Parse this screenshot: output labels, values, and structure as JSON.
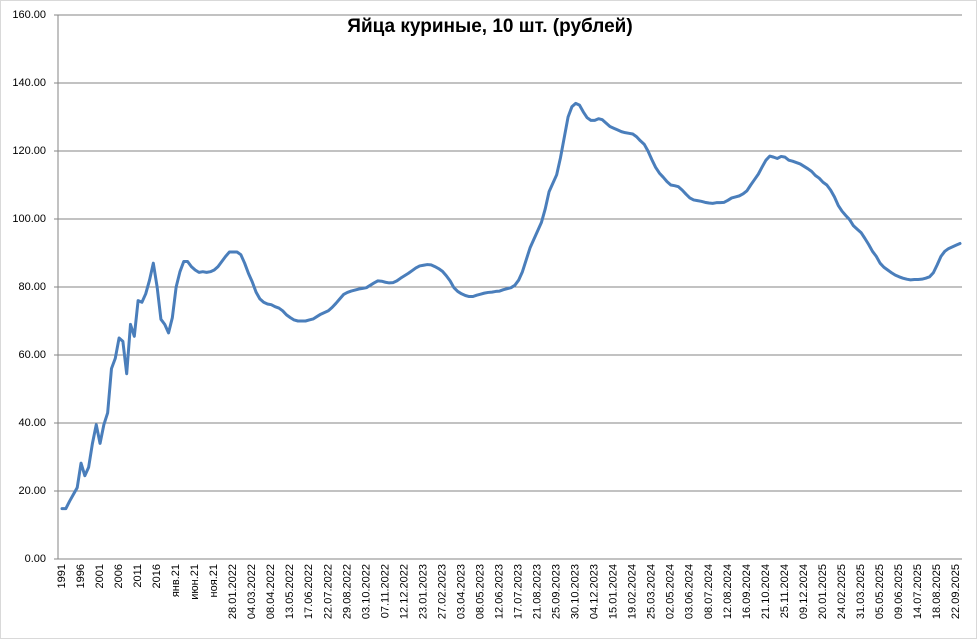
{
  "chart_data": {
    "type": "line",
    "title": "Яйца куриные, 10 шт. (рублей)",
    "categories": [
      "1991",
      null,
      null,
      null,
      null,
      "1996",
      null,
      null,
      null,
      null,
      "2001",
      null,
      null,
      null,
      null,
      "2006",
      null,
      null,
      null,
      null,
      "2011",
      null,
      null,
      null,
      null,
      "2016",
      null,
      null,
      null,
      null,
      "янв.21",
      null,
      null,
      null,
      null,
      "июн.21",
      null,
      null,
      null,
      null,
      "ноя.21",
      null,
      null,
      null,
      null,
      "28.01.2022",
      null,
      null,
      null,
      null,
      "04.03.2022",
      null,
      null,
      null,
      null,
      "08.04.2022",
      null,
      null,
      null,
      null,
      "13.05.2022",
      null,
      null,
      null,
      null,
      "17.06.2022",
      null,
      null,
      null,
      null,
      "22.07.2022",
      null,
      null,
      null,
      null,
      "29.08.2022",
      null,
      null,
      null,
      null,
      "03.10.2022",
      null,
      null,
      null,
      null,
      "07.11.2022",
      null,
      null,
      null,
      null,
      "12.12.2022",
      null,
      null,
      null,
      null,
      "23.01.2023",
      null,
      null,
      null,
      null,
      "27.02.2023",
      null,
      null,
      null,
      null,
      "03.04.2023",
      null,
      null,
      null,
      null,
      "08.05.2023",
      null,
      null,
      null,
      null,
      "12.06.2023",
      null,
      null,
      null,
      null,
      "17.07.2023",
      null,
      null,
      null,
      null,
      "21.08.2023",
      null,
      null,
      null,
      null,
      "25.09.2023",
      null,
      null,
      null,
      null,
      "30.10.2023",
      null,
      null,
      null,
      null,
      "04.12.2023",
      null,
      null,
      null,
      null,
      "15.01.2024",
      null,
      null,
      null,
      null,
      "19.02.2024",
      null,
      null,
      null,
      null,
      "25.03.2024",
      null,
      null,
      null,
      null,
      "02.05.2024",
      null,
      null,
      null,
      null,
      "03.06.2024",
      null,
      null,
      null,
      null,
      "08.07.2024",
      null,
      null,
      null,
      null,
      "12.08.2024",
      null,
      null,
      null,
      null,
      "16.09.2024",
      null,
      null,
      null,
      null,
      "21.10.2024",
      null,
      null,
      null,
      null,
      "25.11.2024",
      null,
      null,
      null,
      null,
      "09.12.2024",
      null,
      null,
      null,
      null,
      "20.01.2025",
      null,
      null,
      null,
      null,
      "24.02.2025",
      null,
      null,
      null,
      null,
      "31.03.2025",
      null,
      null,
      null,
      null,
      "05.05.2025",
      null,
      null,
      null,
      null,
      "09.06.2025",
      null,
      null,
      null,
      null,
      "14.07.2025",
      null,
      null,
      null,
      null,
      "18.08.2025",
      null,
      null,
      null,
      null,
      "22.09.2025",
      null
    ],
    "values": [
      14.8,
      14.8,
      17,
      19,
      21,
      28.2,
      24.5,
      27,
      34,
      39.5,
      34,
      39.5,
      43,
      56,
      59,
      65,
      64,
      54.5,
      69,
      65.5,
      76,
      75.5,
      78,
      82,
      87,
      80,
      70.5,
      69,
      66.5,
      71,
      80,
      84.5,
      87.5,
      87.5,
      86,
      85,
      84.3,
      84.5,
      84.3,
      84.5,
      85,
      86,
      87.5,
      89,
      90.3,
      90.3,
      90.3,
      89.5,
      87,
      84,
      81.5,
      78.5,
      76.5,
      75.5,
      75,
      74.8,
      74.2,
      73.8,
      73,
      71.8,
      71,
      70.3,
      70,
      70,
      70,
      70.3,
      70.6,
      71.3,
      72,
      72.5,
      73,
      74,
      75.2,
      76.5,
      77.8,
      78.4,
      78.8,
      79.1,
      79.4,
      79.6,
      79.8,
      80.5,
      81.2,
      81.8,
      81.7,
      81.4,
      81.2,
      81.3,
      81.8,
      82.6,
      83.3,
      84,
      84.8,
      85.6,
      86.2,
      86.4,
      86.6,
      86.5,
      86,
      85.4,
      84.6,
      83.3,
      81.8,
      79.8,
      78.7,
      78,
      77.5,
      77.2,
      77.2,
      77.6,
      77.9,
      78.2,
      78.4,
      78.5,
      78.7,
      78.8,
      79.2,
      79.5,
      79.8,
      80.5,
      82,
      84.5,
      88,
      91.5,
      94,
      96.5,
      99,
      103,
      108,
      110.5,
      113,
      118,
      124,
      130,
      133,
      134,
      133.5,
      131.5,
      129.8,
      129,
      129,
      129.5,
      129.2,
      128.2,
      127.2,
      126.7,
      126.2,
      125.7,
      125.4,
      125.2,
      125,
      124.2,
      123,
      122,
      120,
      117.5,
      115.2,
      113.5,
      112.3,
      111,
      110,
      109.8,
      109.5,
      108.5,
      107.3,
      106.2,
      105.6,
      105.4,
      105.2,
      104.9,
      104.7,
      104.6,
      104.8,
      104.8,
      104.9,
      105.5,
      106.2,
      106.5,
      106.8,
      107.4,
      108.3,
      110,
      111.6,
      113.2,
      115.3,
      117.3,
      118.5,
      118.2,
      117.8,
      118.4,
      118.2,
      117.3,
      117,
      116.6,
      116.2,
      115.5,
      114.8,
      114,
      112.8,
      112,
      110.8,
      110,
      108.5,
      106.5,
      104,
      102.3,
      101,
      99.8,
      98,
      97,
      96,
      94.3,
      92.5,
      90.5,
      89,
      87,
      85.8,
      85,
      84.2,
      83.5,
      83,
      82.6,
      82.3,
      82.1,
      82.2,
      82.2,
      82.3,
      82.6,
      83,
      84.2,
      86.5,
      89,
      90.5,
      91.3,
      91.8,
      92.3,
      92.8
    ],
    "color": "#4a7ebb",
    "ylim": [
      0,
      160
    ],
    "yticks": [
      {
        "value": 0,
        "label": "0.00"
      },
      {
        "value": 20,
        "label": "20.00"
      },
      {
        "value": 40,
        "label": "40.00"
      },
      {
        "value": 60,
        "label": "60.00"
      },
      {
        "value": 80,
        "label": "80.00"
      },
      {
        "value": 100,
        "label": "100.00"
      },
      {
        "value": 120,
        "label": "120.00"
      },
      {
        "value": 140,
        "label": "140.00"
      },
      {
        "value": 160,
        "label": "160.00"
      }
    ],
    "grid": true
  }
}
